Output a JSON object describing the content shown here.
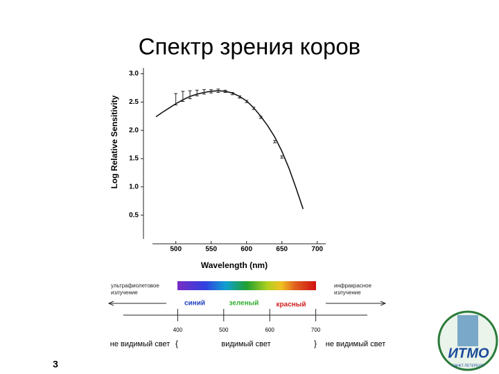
{
  "chart_data": {
    "type": "line",
    "title": "Спектр зрения коров",
    "x_label": "Wavelength (nm)",
    "y_label": "Log Relative Sensitivity",
    "x": [
      472,
      480,
      490,
      500,
      510,
      520,
      530,
      540,
      550,
      560,
      570,
      580,
      590,
      600,
      610,
      620,
      630,
      640,
      650,
      660,
      670,
      680
    ],
    "series": [
      {
        "color": "#111111",
        "values": [
          2.24,
          2.31,
          2.39,
          2.47,
          2.54,
          2.6,
          2.64,
          2.67,
          2.69,
          2.7,
          2.69,
          2.66,
          2.6,
          2.52,
          2.4,
          2.25,
          2.08,
          1.88,
          1.63,
          1.33,
          0.98,
          0.61
        ]
      }
    ],
    "error_points": {
      "x": [
        500,
        510,
        520,
        530,
        540,
        550,
        560,
        570,
        580,
        590,
        600,
        610,
        620,
        640,
        650
      ],
      "values": [
        2.55,
        2.6,
        2.63,
        2.66,
        2.68,
        2.69,
        2.7,
        2.69,
        2.65,
        2.59,
        2.51,
        2.39,
        2.23,
        1.8,
        1.53
      ],
      "errors": [
        0.1,
        0.09,
        0.07,
        0.05,
        0.04,
        0.03,
        0.03,
        0.02,
        0.02,
        0.02,
        0.02,
        0.02,
        0.02,
        0.02,
        0.02
      ]
    },
    "xlim": [
      467,
      712
    ],
    "xticks": [
      500,
      550,
      600,
      650,
      700
    ],
    "ylim": [
      0.08,
      3.08
    ],
    "yticks": [
      0.5,
      {
        "value": 1,
        "label": "1.0"
      },
      1.5,
      {
        "value": 2,
        "label": "2.0"
      },
      2.5,
      {
        "value": 3,
        "label": "3.0"
      }
    ]
  },
  "spectrum": {
    "xlim": [
      282,
      812
    ],
    "ticks": [
      400,
      500,
      600,
      700
    ],
    "uv": "ультрафиолетовое излучение",
    "ir": "инфракрасное излучение",
    "blue": "синий",
    "green": "зеленый",
    "red": "красный",
    "invisible_left": "не видимый свет",
    "brace_left": "{",
    "visible": "видимый свет",
    "brace_right": "}",
    "invisible_right": "не видимый свет"
  },
  "slide_number": "3",
  "logo": {
    "name": "ИТМО",
    "city": "САНКТ-ПЕТЕРБУРГ"
  }
}
